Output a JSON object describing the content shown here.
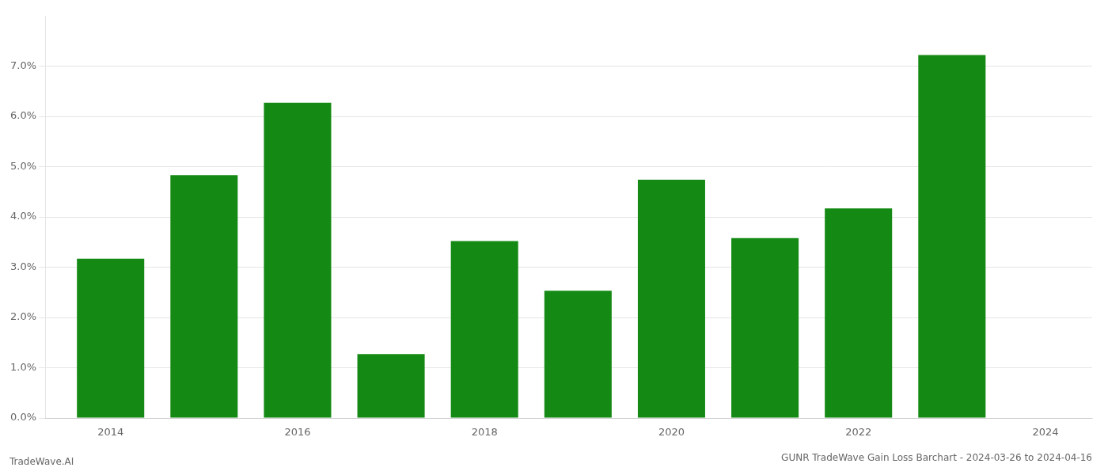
{
  "chart_data": {
    "type": "bar",
    "title": "GUNR TradeWave Gain Loss Barchart - 2024-03-26 to 2024-04-16",
    "annotations": [
      "TradeWave.AI"
    ],
    "x": [
      2014,
      2015,
      2016,
      2017,
      2018,
      2019,
      2020,
      2021,
      2022,
      2023
    ],
    "values": [
      0.0317,
      0.0483,
      0.0627,
      0.0127,
      0.0352,
      0.0253,
      0.0474,
      0.0358,
      0.0417,
      0.0722
    ],
    "color": "#148a14",
    "xlim": [
      2013.3,
      2024.5
    ],
    "xticks": [
      2014,
      2016,
      2018,
      2020,
      2022,
      2024
    ],
    "ylim": [
      0,
      0.08
    ],
    "yticks": [
      {
        "value": 0.0,
        "label": "0.0%"
      },
      {
        "value": 0.01,
        "label": "1.0%"
      },
      {
        "value": 0.02,
        "label": "2.0%"
      },
      {
        "value": 0.03,
        "label": "3.0%"
      },
      {
        "value": 0.04,
        "label": "4.0%"
      },
      {
        "value": 0.05,
        "label": "5.0%"
      },
      {
        "value": 0.06,
        "label": "6.0%"
      },
      {
        "value": 0.07,
        "label": "7.0%"
      }
    ],
    "grid": true
  }
}
